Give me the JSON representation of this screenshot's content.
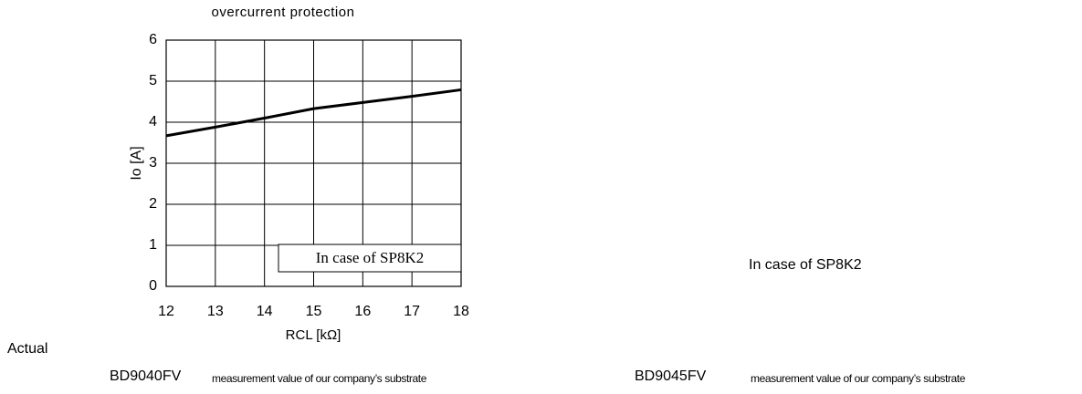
{
  "chart_data": {
    "type": "line",
    "title": "overcurrent protection",
    "y_label": "Io [A]",
    "x_label": "RCL [kΩ]",
    "x": [
      12,
      13,
      14,
      15,
      16,
      17,
      18
    ],
    "series": [
      {
        "color": "#000000",
        "values": [
          3.67,
          3.88,
          4.1,
          4.33,
          4.48,
          4.63,
          4.79
        ]
      }
    ],
    "xlim": [
      12,
      18
    ],
    "xticks": [
      12,
      13,
      14,
      15,
      16,
      17,
      18
    ],
    "ylim": [
      0,
      6
    ],
    "yticks": [
      0,
      1,
      2,
      3,
      4,
      5,
      6
    ],
    "grid": true,
    "annotation": "In case of SP8K2"
  },
  "page": {
    "right_note": "In case of SP8K2",
    "side_label": "Actual",
    "captions": [
      {
        "part": "BD9040FV",
        "text": "measurement value of our company’s substrate"
      },
      {
        "part": "BD9045FV",
        "text": "measurement value of our company’s substrate"
      }
    ]
  }
}
